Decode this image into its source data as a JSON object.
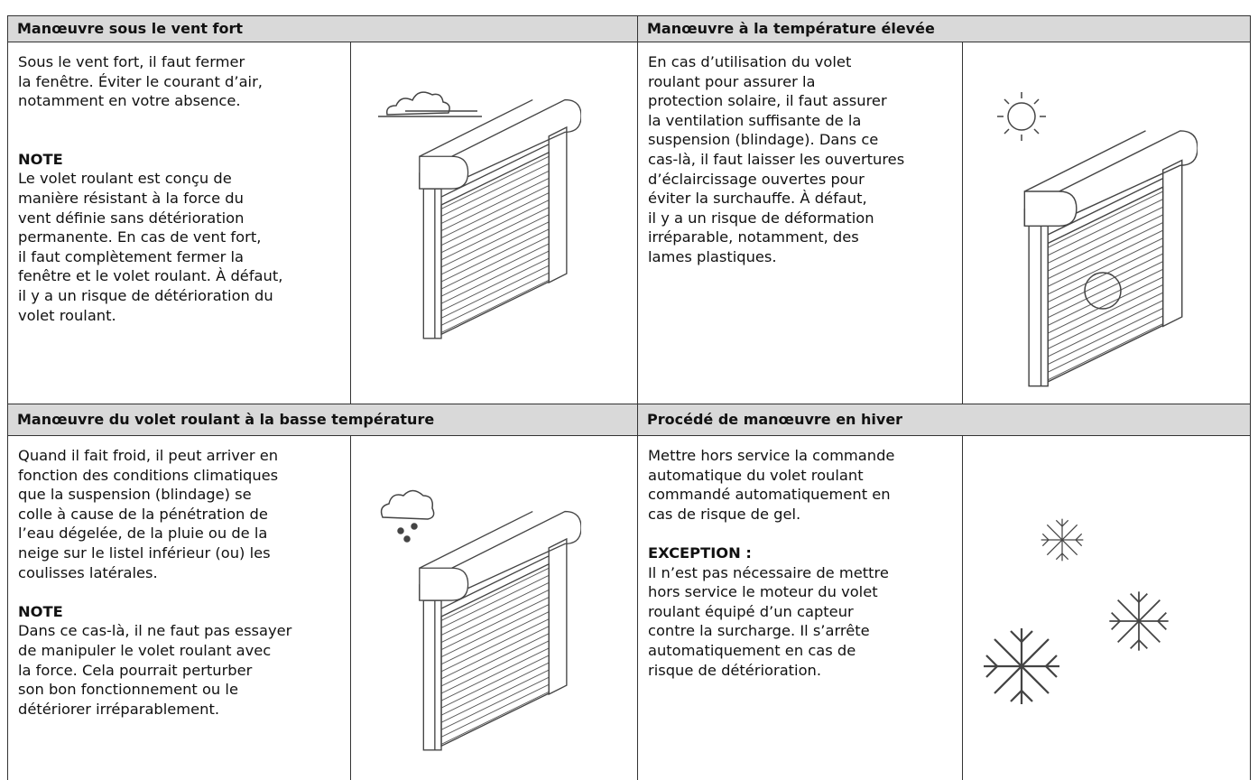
{
  "sections": [
    {
      "title": "Manœuvre sous le vent fort",
      "paragraphs": [
        {
          "lines": [
            "Sous le vent fort, il faut fermer",
            "la fenêtre. Éviter le courant d’air,",
            "notamment en votre absence."
          ]
        },
        {
          "heading": "NOTE",
          "lines": [
            "Le volet roulant est conçu de",
            "manière résistant à la force du",
            "vent définie sans détérioration",
            "permanente. En cas de vent fort,",
            "il faut complètement fermer la",
            "fenêtre et le volet roulant. À défaut,",
            "il y a un risque de détérioration du",
            "volet roulant."
          ]
        }
      ]
    },
    {
      "title": "Manœuvre à la température élevée",
      "paragraphs": [
        {
          "lines": [
            "En cas d’utilisation du volet",
            "roulant pour assurer la",
            "protection solaire, il faut assurer",
            "la ventilation suffisante de la",
            "suspension (blindage). Dans ce",
            "cas-là, il faut laisser les ouvertures",
            "d’éclaircissage ouvertes pour",
            "éviter la surchauffe. À défaut,",
            "il y a un risque de déformation",
            "irréparable, notamment, des",
            "lames plastiques."
          ]
        }
      ]
    },
    {
      "title": "Manœuvre du volet roulant à la basse température",
      "paragraphs": [
        {
          "lines": [
            "Quand il fait froid, il peut arriver en",
            "fonction des conditions climatiques",
            "que la suspension (blindage) se",
            "colle à cause de la pénétration de",
            "l’eau dégelée, de la pluie ou de la",
            "neige sur le listel inférieur (ou) les",
            "coulisses latérales."
          ]
        },
        {
          "heading": "NOTE",
          "lines": [
            "Dans ce cas-là, il ne faut pas essayer",
            "de manipuler le volet roulant avec",
            "la force. Cela pourrait perturber",
            "son bon fonctionnement ou le",
            "détériorer irréparablement."
          ]
        }
      ]
    },
    {
      "title": "Procédé de manœuvre en hiver",
      "paragraphs": [
        {
          "lines": [
            "Mettre hors service la commande",
            "automatique du volet roulant",
            "commandé automatiquement en",
            "cas de risque de gel."
          ]
        },
        {
          "heading": "EXCEPTION :",
          "lines": [
            "Il n’est pas nécessaire de mettre",
            "hors service le moteur du volet",
            "roulant équipé d’un capteur",
            "contre la surcharge. Il s’arrête",
            "automatiquement en cas de",
            "risque de détérioration."
          ]
        }
      ]
    }
  ]
}
